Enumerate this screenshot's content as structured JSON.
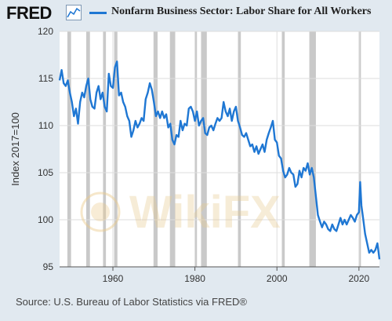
{
  "header": {
    "logo_text": "FRED",
    "logo_icon": "line-chart-icon",
    "title": "Nonfarm Business Sector: Labor Share for All Workers"
  },
  "source_text": "Source: U.S. Bureau of Labor Statistics via FRED®",
  "watermark_text": "WikiFX",
  "colors": {
    "line": "#1f77d3",
    "background": "#e1e9f0",
    "plot_background": "#ffffff",
    "recession": "#9c9c9c",
    "grid": "#dddddd"
  },
  "chart_data": {
    "type": "line",
    "title": "Nonfarm Business Sector: Labor Share for All Workers",
    "xlabel": "",
    "ylabel": "Index 2017=100",
    "xlim": [
      1947,
      2025
    ],
    "ylim": [
      95,
      120
    ],
    "x_ticks": [
      "1960",
      "1980",
      "2000",
      "2020"
    ],
    "y_ticks": [
      "95",
      "100",
      "105",
      "110",
      "115",
      "120"
    ],
    "grid": true,
    "legend": "top",
    "recessions": [
      [
        1948.9,
        1949.8
      ],
      [
        1953.5,
        1954.4
      ],
      [
        1957.6,
        1958.3
      ],
      [
        1960.3,
        1961.1
      ],
      [
        1969.9,
        1970.9
      ],
      [
        1973.9,
        1975.2
      ],
      [
        1980.0,
        1980.5
      ],
      [
        1981.5,
        1982.9
      ],
      [
        1990.5,
        1991.2
      ],
      [
        2001.2,
        2001.9
      ],
      [
        2007.9,
        2009.5
      ],
      [
        2020.1,
        2020.4
      ]
    ],
    "series": [
      {
        "name": "Nonfarm Business Sector: Labor Share for All Workers",
        "x": [
          1947.0,
          1947.5,
          1948.0,
          1948.5,
          1949.0,
          1949.5,
          1950.0,
          1950.5,
          1951.0,
          1951.5,
          1952.0,
          1952.5,
          1953.0,
          1953.5,
          1954.0,
          1954.5,
          1955.0,
          1955.5,
          1956.0,
          1956.5,
          1957.0,
          1957.5,
          1958.0,
          1958.5,
          1959.0,
          1959.5,
          1960.0,
          1960.5,
          1961.0,
          1961.5,
          1962.0,
          1962.5,
          1963.0,
          1963.5,
          1964.0,
          1964.5,
          1965.0,
          1965.5,
          1966.0,
          1966.5,
          1967.0,
          1967.5,
          1968.0,
          1968.5,
          1969.0,
          1969.5,
          1970.0,
          1970.5,
          1971.0,
          1971.5,
          1972.0,
          1972.5,
          1973.0,
          1973.5,
          1974.0,
          1974.5,
          1975.0,
          1975.5,
          1976.0,
          1976.5,
          1977.0,
          1977.5,
          1978.0,
          1978.5,
          1979.0,
          1979.5,
          1980.0,
          1980.5,
          1981.0,
          1981.5,
          1982.0,
          1982.5,
          1983.0,
          1983.5,
          1984.0,
          1984.5,
          1985.0,
          1985.5,
          1986.0,
          1986.5,
          1987.0,
          1987.5,
          1988.0,
          1988.5,
          1989.0,
          1989.5,
          1990.0,
          1990.5,
          1991.0,
          1991.5,
          1992.0,
          1992.5,
          1993.0,
          1993.5,
          1994.0,
          1994.5,
          1995.0,
          1995.5,
          1996.0,
          1996.5,
          1997.0,
          1997.5,
          1998.0,
          1998.5,
          1999.0,
          1999.5,
          2000.0,
          2000.5,
          2001.0,
          2001.5,
          2002.0,
          2002.5,
          2003.0,
          2003.5,
          2004.0,
          2004.5,
          2005.0,
          2005.5,
          2006.0,
          2006.5,
          2007.0,
          2007.5,
          2008.0,
          2008.5,
          2009.0,
          2009.5,
          2010.0,
          2010.5,
          2011.0,
          2011.5,
          2012.0,
          2012.5,
          2013.0,
          2013.5,
          2014.0,
          2014.5,
          2015.0,
          2015.5,
          2016.0,
          2016.5,
          2017.0,
          2017.5,
          2018.0,
          2018.5,
          2019.0,
          2019.5,
          2020.0,
          2020.3,
          2020.6,
          2021.0,
          2021.5,
          2022.0,
          2022.5,
          2023.0,
          2023.5,
          2024.0,
          2024.5,
          2025.0
        ],
        "values": [
          114.8,
          115.9,
          114.5,
          114.2,
          114.8,
          113.5,
          112.5,
          111.0,
          111.8,
          110.2,
          112.5,
          113.5,
          113.0,
          114.2,
          115.0,
          112.8,
          112.0,
          111.8,
          113.5,
          114.2,
          112.8,
          113.5,
          112.0,
          111.5,
          115.5,
          114.2,
          114.0,
          116.2,
          116.8,
          113.2,
          113.5,
          112.5,
          112.0,
          111.0,
          110.5,
          108.8,
          109.5,
          110.5,
          109.8,
          110.2,
          110.8,
          110.5,
          112.8,
          113.5,
          114.5,
          113.8,
          112.5,
          111.0,
          111.5,
          110.8,
          111.5,
          110.8,
          111.2,
          109.8,
          110.2,
          108.5,
          108.0,
          109.0,
          108.8,
          110.5,
          109.5,
          110.2,
          110.0,
          111.8,
          112.0,
          111.5,
          110.5,
          111.5,
          110.0,
          110.5,
          110.8,
          109.2,
          109.0,
          109.8,
          110.0,
          109.5,
          110.2,
          110.8,
          110.5,
          110.8,
          112.5,
          111.5,
          111.0,
          111.8,
          110.5,
          111.5,
          112.0,
          110.5,
          109.8,
          109.0,
          108.8,
          109.2,
          108.5,
          107.8,
          108.0,
          107.2,
          107.8,
          107.0,
          107.5,
          108.0,
          107.2,
          108.5,
          109.2,
          109.8,
          110.5,
          108.5,
          108.2,
          106.8,
          106.5,
          105.2,
          104.5,
          104.8,
          105.5,
          105.0,
          104.8,
          103.5,
          103.8,
          105.2,
          104.5,
          105.5,
          105.2,
          106.0,
          104.8,
          105.5,
          104.5,
          102.5,
          100.5,
          99.8,
          99.2,
          99.8,
          99.5,
          99.0,
          98.8,
          99.5,
          99.0,
          98.8,
          99.5,
          100.2,
          99.5,
          100.0,
          99.5,
          100.0,
          100.5,
          100.2,
          99.8,
          100.5,
          100.8,
          104.0,
          101.5,
          100.2,
          98.5,
          97.5,
          96.5,
          96.8,
          96.5,
          96.8,
          97.5,
          95.8
        ]
      }
    ]
  }
}
